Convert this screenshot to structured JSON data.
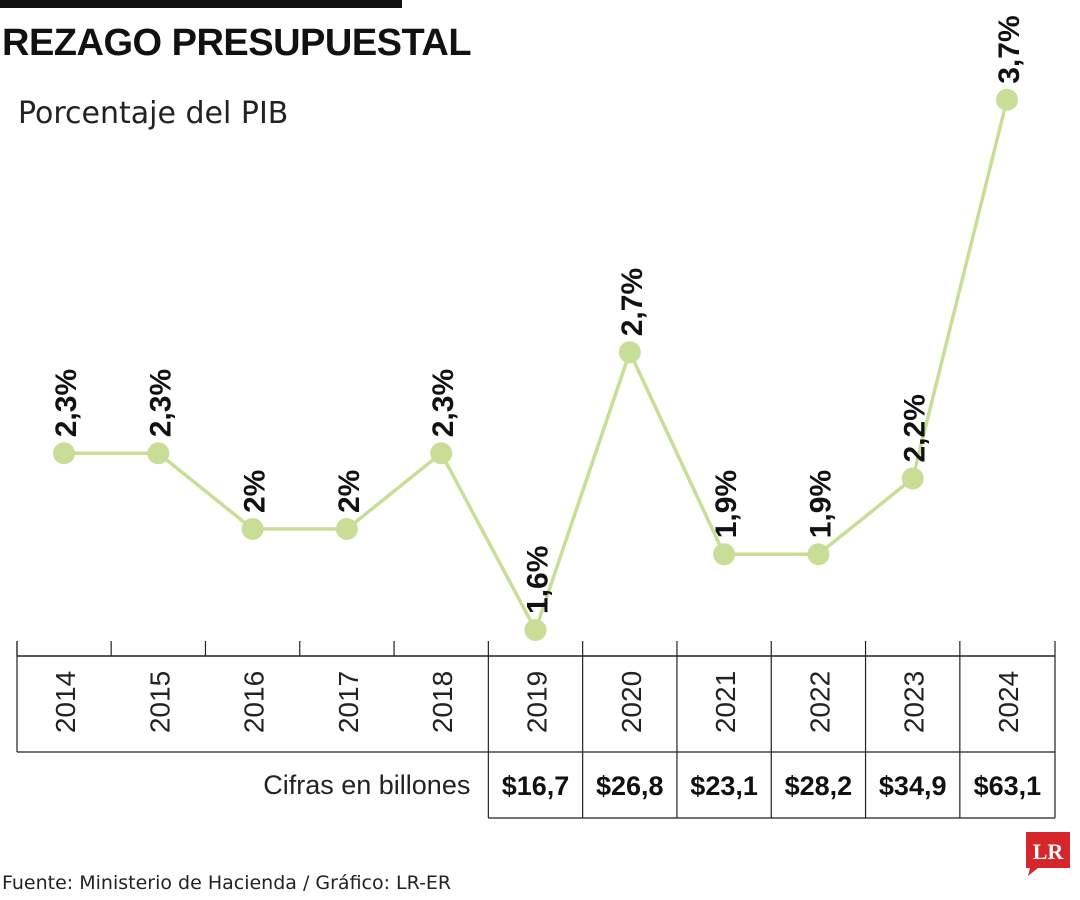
{
  "header": {
    "title": "REZAGO PRESUPUESTAL",
    "subtitle": "Porcentaje del PIB"
  },
  "footer": {
    "source": "Fuente: Ministerio de Hacienda / Gráfico: LR-ER",
    "logo_text": "LR"
  },
  "colors": {
    "line": "#c8dd96",
    "marker": "#c8dd96",
    "text": "#111111",
    "logo": "#d6262b"
  },
  "chart_data": {
    "type": "line",
    "title": "REZAGO PRESUPUESTAL",
    "subtitle": "Porcentaje del PIB",
    "x": [
      "2014",
      "2015",
      "2016",
      "2017",
      "2018",
      "2019",
      "2020",
      "2021",
      "2022",
      "2023",
      "2024"
    ],
    "series": [
      {
        "values": [
          2.3,
          2.3,
          2.0,
          2.0,
          2.3,
          1.6,
          2.7,
          1.9,
          1.9,
          2.2,
          3.7
        ],
        "labels": [
          "2,3%",
          "2,3%",
          "2%",
          "2%",
          "2,3%",
          "1,6%",
          "2,7%",
          "1,9%",
          "1,9%",
          "2,2%",
          "3,7%"
        ]
      }
    ],
    "table": {
      "row_label": "Cifras en billones",
      "years": [
        "2019",
        "2020",
        "2021",
        "2022",
        "2023",
        "2024"
      ],
      "values": [
        "$16,7",
        "$26,8",
        "$23,1",
        "$28,2",
        "$34,9",
        "$63,1"
      ]
    },
    "grid": false,
    "legend": "none"
  }
}
